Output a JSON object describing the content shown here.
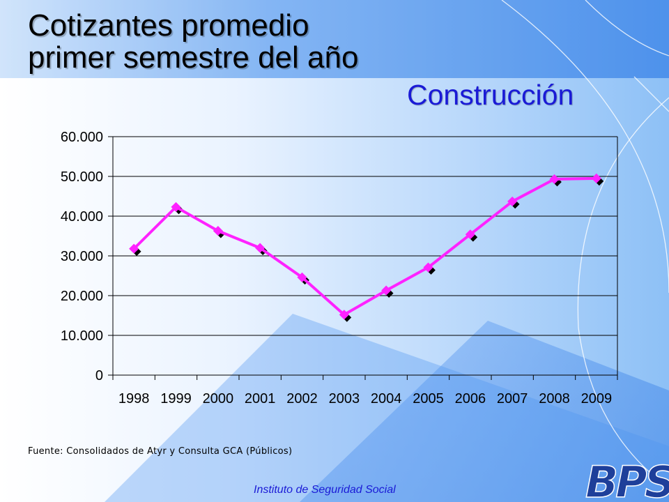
{
  "title_line1": "Cotizantes promedio",
  "title_line2": "primer semestre del año",
  "subtitle": "Construcción",
  "source_note": "Fuente: Consolidados de Atyr y Consulta GCA (Públicos)",
  "footer": "Instituto de Seguridad Social",
  "logo_text": "BPS",
  "colors": {
    "accent": "#1a1ad6",
    "line": "#ff22ff",
    "marker_shadow": "#000000",
    "background_top": "#3b8cf0",
    "background_light": "#f4f8ff"
  },
  "chart_data": {
    "type": "line",
    "categories": [
      "1998",
      "1999",
      "2000",
      "2001",
      "2002",
      "2003",
      "2004",
      "2005",
      "2006",
      "2007",
      "2008",
      "2009"
    ],
    "series": [
      {
        "values": [
          31800,
          42300,
          36300,
          32000,
          24600,
          15200,
          21300,
          27100,
          35400,
          43700,
          49300,
          49500
        ]
      }
    ],
    "y_ticks": [
      "0",
      "10.000",
      "20.000",
      "30.000",
      "40.000",
      "50.000",
      "60.000"
    ],
    "ylim": [
      0,
      60000
    ],
    "grid": true,
    "legend": "none"
  }
}
